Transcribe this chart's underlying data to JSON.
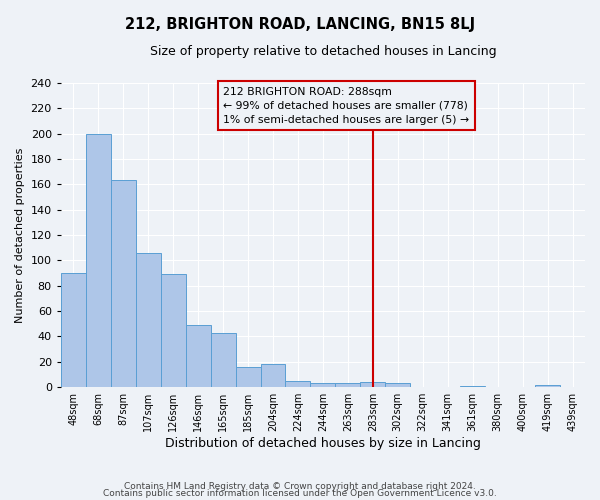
{
  "title": "212, BRIGHTON ROAD, LANCING, BN15 8LJ",
  "subtitle": "Size of property relative to detached houses in Lancing",
  "xlabel": "Distribution of detached houses by size in Lancing",
  "ylabel": "Number of detached properties",
  "categories": [
    "48sqm",
    "68sqm",
    "87sqm",
    "107sqm",
    "126sqm",
    "146sqm",
    "165sqm",
    "185sqm",
    "204sqm",
    "224sqm",
    "244sqm",
    "263sqm",
    "283sqm",
    "302sqm",
    "322sqm",
    "341sqm",
    "361sqm",
    "380sqm",
    "400sqm",
    "419sqm",
    "439sqm"
  ],
  "values": [
    90,
    200,
    163,
    106,
    89,
    49,
    43,
    16,
    18,
    5,
    3,
    3,
    4,
    3,
    0,
    0,
    1,
    0,
    0,
    2,
    0
  ],
  "bar_color": "#aec6e8",
  "bar_edge_color": "#5a9fd4",
  "vline_idx": 12,
  "vline_color": "#cc0000",
  "annotation_title": "212 BRIGHTON ROAD: 288sqm",
  "annotation_line1": "← 99% of detached houses are smaller (778)",
  "annotation_line2": "1% of semi-detached houses are larger (5) →",
  "ylim": [
    0,
    240
  ],
  "yticks": [
    0,
    20,
    40,
    60,
    80,
    100,
    120,
    140,
    160,
    180,
    200,
    220,
    240
  ],
  "footer_line1": "Contains HM Land Registry data © Crown copyright and database right 2024.",
  "footer_line2": "Contains public sector information licensed under the Open Government Licence v3.0.",
  "bg_color": "#eef2f7",
  "grid_color": "#ffffff"
}
